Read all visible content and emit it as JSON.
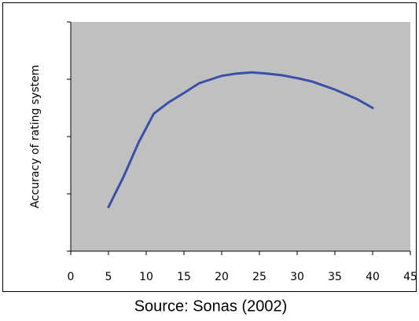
{
  "chart_data": {
    "type": "line",
    "y_label": "Accuracy of rating system",
    "caption": "Source: Sonas (2002)",
    "x": [
      5,
      7,
      9,
      11,
      13,
      15,
      17,
      20,
      22,
      24,
      26,
      28,
      30,
      32,
      35,
      38,
      40
    ],
    "series": [
      {
        "color": "#3a50a8",
        "values": [
          0.77,
          1.3,
          1.9,
          2.4,
          2.6,
          2.76,
          2.93,
          3.06,
          3.1,
          3.12,
          3.1,
          3.07,
          3.02,
          2.96,
          2.82,
          2.65,
          2.5
        ]
      }
    ],
    "xlim": [
      0,
      45
    ],
    "xticks": [
      0,
      5,
      10,
      15,
      20,
      25,
      30,
      35,
      40,
      45
    ],
    "ylim": [
      0,
      4
    ],
    "yticks": [
      0,
      1,
      2,
      3,
      4
    ],
    "plot_background": "#c0c0c0"
  }
}
